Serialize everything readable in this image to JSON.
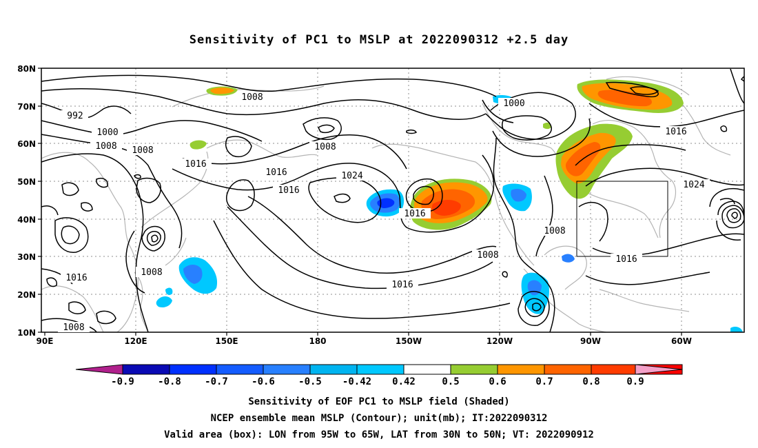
{
  "title": "Sensitivity of PC1 to MSLP at 2022090312 +2.5 day",
  "lat_labels": [
    "80N",
    "70N",
    "60N",
    "50N",
    "40N",
    "30N",
    "20N",
    "10N"
  ],
  "lon_labels": [
    "90E",
    "120E",
    "150E",
    "180",
    "150W",
    "120W",
    "90W",
    "60W"
  ],
  "contour_labels": [
    "1008",
    "992",
    "1000",
    "1008",
    "1008",
    "1016",
    "1016",
    "1016",
    "1024",
    "1008",
    "1000",
    "1016",
    "1024",
    "1016",
    "1008",
    "1008",
    "1016",
    "1016",
    "1008",
    "1016",
    "1008"
  ],
  "colorbar": {
    "ticks": [
      "-0.9",
      "-0.8",
      "-0.7",
      "-0.6",
      "-0.5",
      "-0.42",
      "0.42",
      "0.5",
      "0.6",
      "0.7",
      "0.8",
      "0.9"
    ],
    "colors": [
      "#b0208c",
      "#0a0ab4",
      "#0030ff",
      "#145cff",
      "#2880ff",
      "#00b4f0",
      "#00c8ff",
      "#ffffff",
      "#96cd32",
      "#ff9600",
      "#ff6400",
      "#ff3c00",
      "#ff0000",
      "#f5a0c8"
    ]
  },
  "valid_box": {
    "lon_min": -95,
    "lon_max": -65,
    "lat_min": 30,
    "lat_max": 50
  },
  "captions": {
    "line1": "Sensitivity of EOF PC1 to MSLP field (Shaded)",
    "line2": "NCEP ensemble mean MSLP (Contour); unit(mb); IT:2022090312",
    "line3": "Valid area (box): LON from 95W to 65W, LAT from 30N to 50N; VT: 2022090912"
  }
}
